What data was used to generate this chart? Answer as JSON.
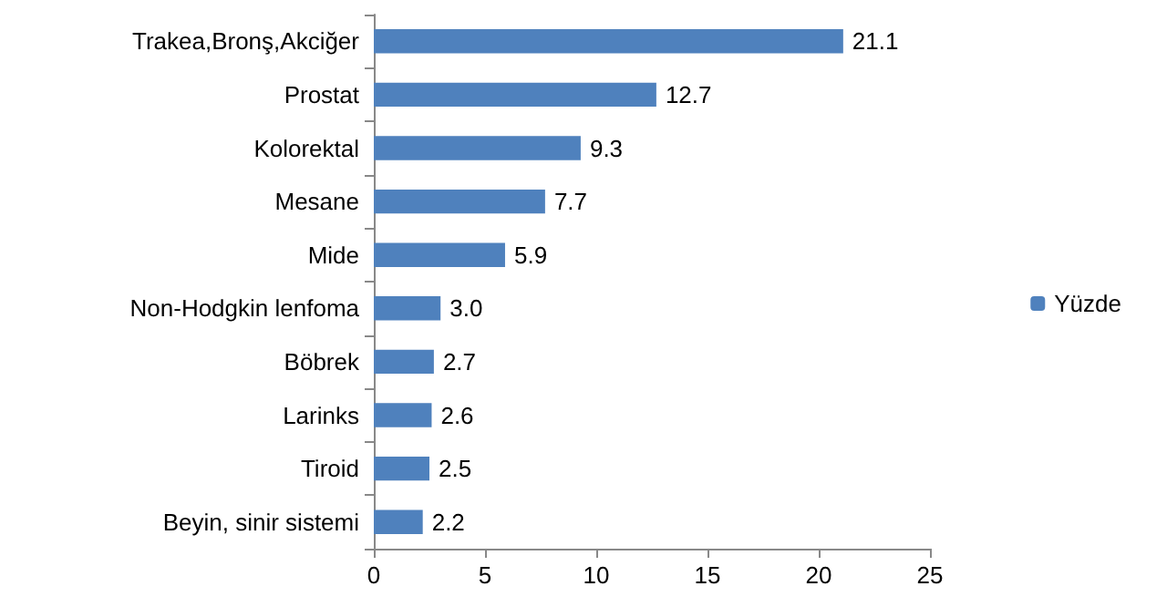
{
  "chart_data": {
    "type": "bar",
    "orientation": "horizontal",
    "categories": [
      "Trakea,Bronş,Akciğer",
      "Prostat",
      "Kolorektal",
      "Mesane",
      "Mide",
      "Non-Hodgkin lenfoma",
      "Böbrek",
      "Larinks",
      "Tiroid",
      "Beyin, sinir sistemi"
    ],
    "series": [
      {
        "name": "Yüzde",
        "color": "#4f81bd",
        "values": [
          21.1,
          12.7,
          9.3,
          7.7,
          5.9,
          3.0,
          2.7,
          2.6,
          2.5,
          2.2
        ],
        "value_labels": [
          "21.1",
          "12.7",
          "9.3",
          "7.7",
          "5.9",
          "3.0",
          "2.7",
          "2.6",
          "2.5",
          "2.2"
        ]
      }
    ],
    "xlim": [
      0,
      25
    ],
    "xticks": [
      0,
      5,
      10,
      15,
      20,
      25
    ],
    "grid": false,
    "legend": "right"
  }
}
